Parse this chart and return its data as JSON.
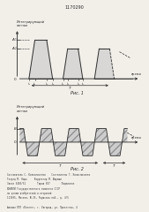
{
  "title": "1170290",
  "fig1_label": "Рис. 1",
  "fig2_label": "Рис. 2",
  "background": "#f2efe9",
  "line_color": "#2a2a2a",
  "fill_gray": "#c8c8c8",
  "text_color": "#1a1a1a",
  "fig1_annotation": "Интегрирующий\nсигнал",
  "fig2_annotation": "Интегрирующий\nсигнал",
  "time_label": "время",
  "footer_lines": [
    "Составитель С. Колосниченко    Составитель Г. Колосниченко",
    "Техред М. Надь     Корректор М. Шароши",
    "Заказ 5403/51        Тираж 897        Подписное",
    "ВНИИПИ Государственного комитета СССР",
    "по делам изобретений и открытий",
    "113035, Москва, Ж-35, Раушская наб., д. 4/5",
    "",
    "Филиал ППП «Патент», г. Ужгород, ул. Проектная, 4"
  ]
}
